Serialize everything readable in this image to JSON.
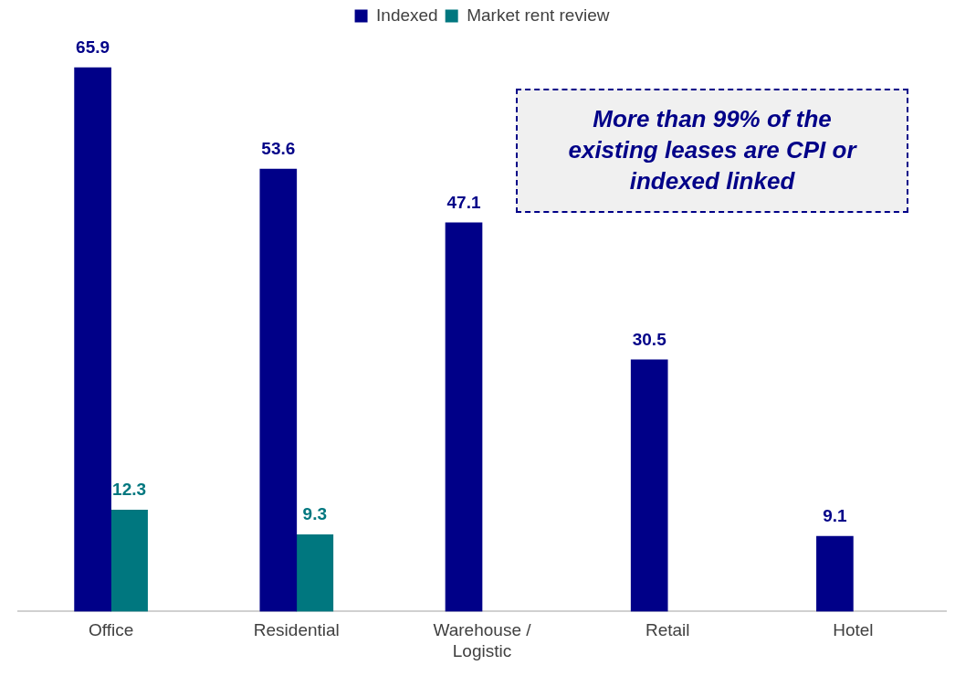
{
  "chart_data": {
    "type": "bar",
    "categories": [
      "Office",
      "Residential",
      "Warehouse / Logistic",
      "Retail",
      "Hotel"
    ],
    "series": [
      {
        "name": "Indexed",
        "color": "#000088",
        "values": [
          65.9,
          53.6,
          47.1,
          30.5,
          9.1
        ]
      },
      {
        "name": "Market rent review",
        "color": "#00777f",
        "values": [
          12.3,
          9.3,
          null,
          null,
          null
        ]
      }
    ],
    "data_labels": true,
    "grid": false,
    "legend": "top",
    "tick_labels": "x",
    "annotations": [
      "More than 99% of the existing leases are CPI or indexed linked"
    ]
  }
}
